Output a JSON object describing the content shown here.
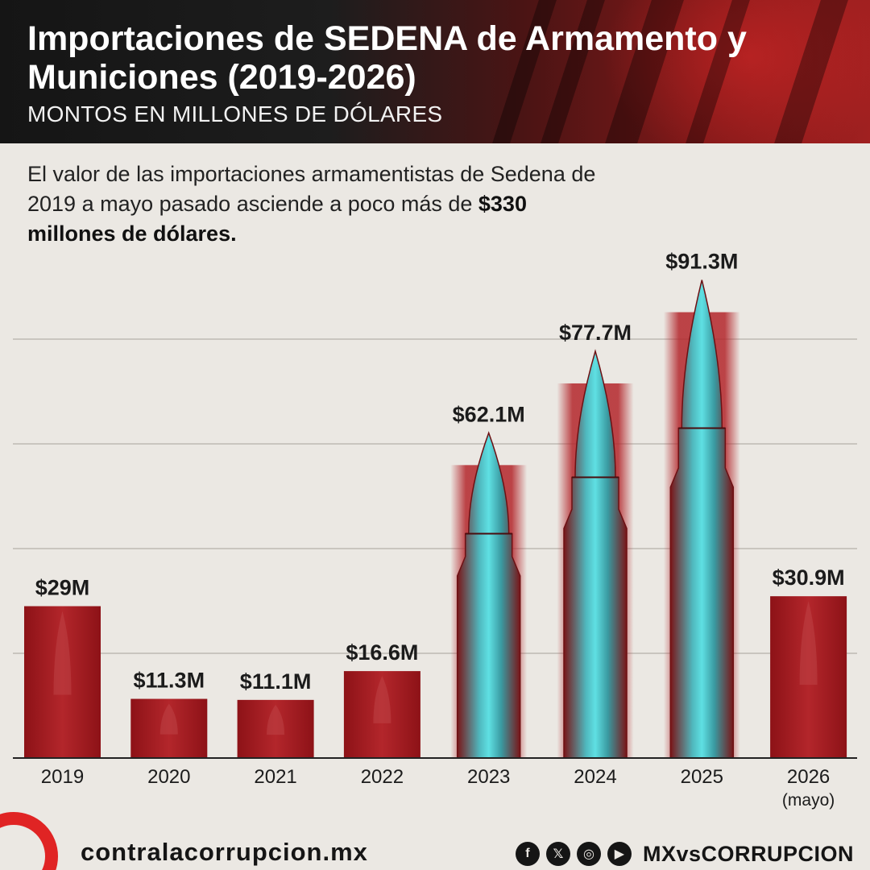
{
  "header": {
    "title": "Importaciones de SEDENA de Armamento y Municiones (2019-2026)",
    "subtitle": "MONTOS EN MILLONES DE DÓLARES"
  },
  "intro": {
    "text": "El valor de las importaciones armamentistas de Sedena de 2019 a mayo pasado asciende a poco más de ",
    "highlight": "$330 millones de dólares."
  },
  "chart_data": {
    "type": "bar",
    "categories": [
      "2019",
      "2020",
      "2021",
      "2022",
      "2023",
      "2024",
      "2025",
      "2026"
    ],
    "category_notes": [
      "",
      "",
      "",
      "",
      "",
      "",
      "",
      "(mayo)"
    ],
    "values": [
      29,
      11.3,
      11.1,
      16.6,
      62.1,
      77.7,
      91.3,
      30.9
    ],
    "value_labels": [
      "$29M",
      "$11.3M",
      "$11.1M",
      "$16.6M",
      "$62.1M",
      "$77.7M",
      "$91.3M",
      "$30.9M"
    ],
    "title": "Importaciones de SEDENA de Armamento y Municiones (2019-2026)",
    "subtitle": "MONTOS EN MILLONES DE DÓLARES",
    "ylim": [
      0,
      100
    ],
    "grid": true,
    "colors": {
      "bar": "#a8181e",
      "bar_dark": "#7a0f13",
      "bullet_highlight": "#3fd4d8",
      "gridline": "#c9c5bf",
      "axis": "#222222"
    }
  },
  "footer": {
    "website": "contralacorrupcion.mx",
    "handle": "MXvsCORRUPCION",
    "icons": [
      "facebook-icon",
      "x-icon",
      "instagram-icon",
      "youtube-icon"
    ]
  }
}
